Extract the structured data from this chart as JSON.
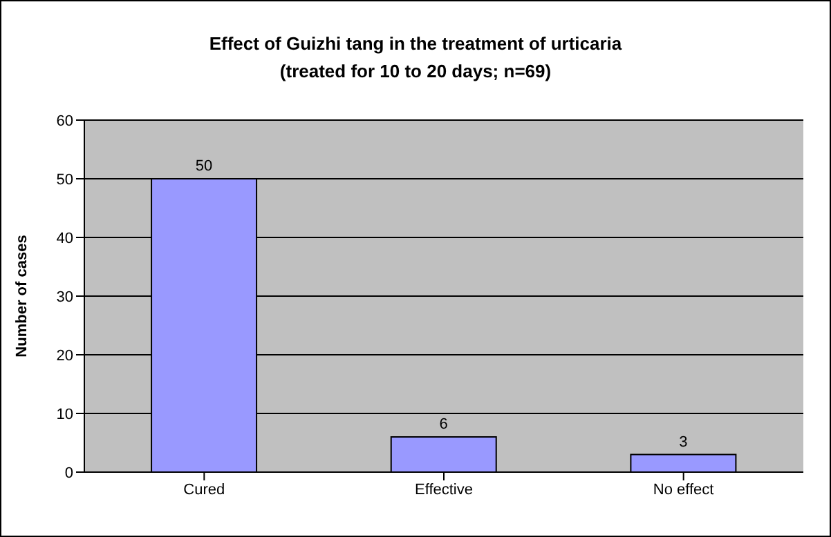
{
  "chart_data": {
    "type": "bar",
    "title": "Effect of Guizhi tang in the treatment of urticaria",
    "subtitle": "(treated for 10 to 20 days; n=69)",
    "ylabel": "Number of cases",
    "categories": [
      "Cured",
      "Effective",
      "No effect"
    ],
    "values": [
      50,
      6,
      3
    ],
    "color": "#9999ff",
    "ylim": [
      0,
      60
    ],
    "yticks": [
      0,
      10,
      20,
      30,
      40,
      50,
      60
    ],
    "grid": "y",
    "data_labels": true
  }
}
